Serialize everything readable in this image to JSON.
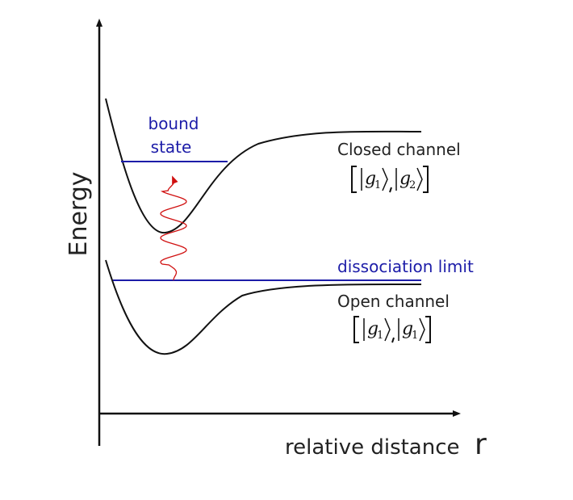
{
  "axes": {
    "y_label": "Energy",
    "x_label": "relative distance",
    "x_symbol": "r"
  },
  "bound_state": {
    "line1": "bound",
    "line2": "state"
  },
  "closed_channel": {
    "label": "Closed channel",
    "states": [
      {
        "symbol": "g",
        "index": "1"
      },
      {
        "symbol": "g",
        "index": "2"
      }
    ]
  },
  "dissociation_limit": "dissociation limit",
  "open_channel": {
    "label": "Open channel",
    "states": [
      {
        "symbol": "g",
        "index": "1"
      },
      {
        "symbol": "g",
        "index": "1"
      }
    ]
  }
}
